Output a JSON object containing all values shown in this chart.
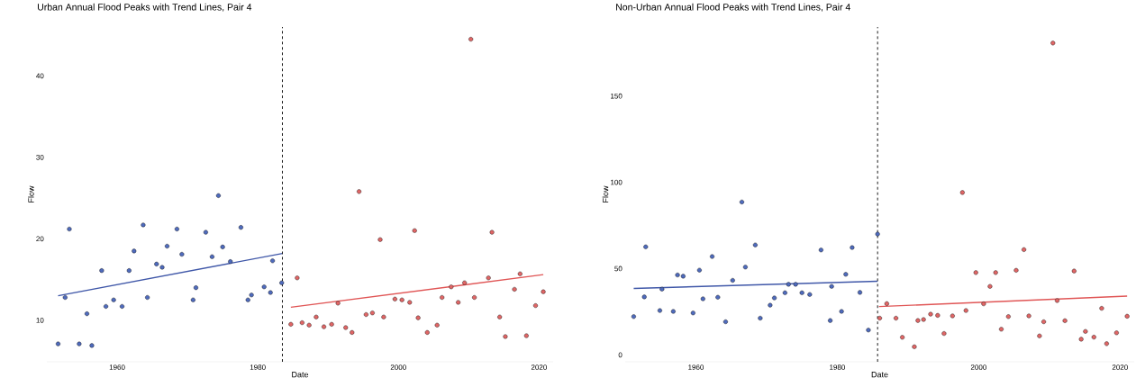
{
  "chart_data": [
    {
      "type": "scatter",
      "title": "Urban Annual Flood Peaks with Trend Lines, Pair 4",
      "xlabel": "Date",
      "ylabel": "Flow",
      "xlim": [
        1950,
        2022
      ],
      "ylim": [
        4.9,
        46
      ],
      "xticks": [
        1960,
        1980,
        2000,
        2020
      ],
      "yticks": [
        10,
        20,
        30,
        40
      ],
      "grid": false,
      "ref_lines": [
        {
          "axis": "x",
          "value": 1983.5,
          "color": "#000000",
          "line_style": "dashed"
        }
      ],
      "series": [
        {
          "type": "scatter",
          "marker": "circle",
          "color": "#4f6bbd",
          "x": [
            1951.6,
            1952.6,
            1953.2,
            1954.6,
            1955.7,
            1956.4,
            1957.8,
            1958.4,
            1959.5,
            1960.7,
            1961.7,
            1962.4,
            1963.7,
            1964.3,
            1965.6,
            1966.4,
            1967.1,
            1968.5,
            1969.2,
            1970.8,
            1971.2,
            1972.6,
            1973.5,
            1974.4,
            1975.0,
            1976.1,
            1977.6,
            1978.6,
            1979.1,
            1980.9,
            1981.8,
            1982.1,
            1983.4
          ],
          "values": [
            7.1,
            12.8,
            21.2,
            7.1,
            10.8,
            6.9,
            16.1,
            11.7,
            12.5,
            11.7,
            16.1,
            18.5,
            21.7,
            12.8,
            16.9,
            16.5,
            19.1,
            21.2,
            18.1,
            12.5,
            14.0,
            20.8,
            17.8,
            25.3,
            19.0,
            17.2,
            21.4,
            12.5,
            13.1,
            14.1,
            13.4,
            17.3,
            14.6
          ]
        },
        {
          "type": "scatter",
          "marker": "circle",
          "color": "#e06666",
          "x": [
            1984.7,
            1985.6,
            1986.3,
            1987.3,
            1988.3,
            1989.4,
            1990.5,
            1991.4,
            1992.5,
            1993.4,
            1994.4,
            1995.4,
            1996.3,
            1997.4,
            1997.9,
            1999.5,
            2000.5,
            2001.6,
            2002.3,
            2002.8,
            2004.1,
            2005.5,
            2006.2,
            2007.5,
            2008.5,
            2009.4,
            2010.3,
            2010.8,
            2012.8,
            2013.3,
            2014.4,
            2015.2,
            2016.5,
            2017.3,
            2018.2,
            2019.5,
            2020.6
          ],
          "values": [
            9.5,
            15.2,
            9.7,
            9.4,
            10.4,
            9.2,
            9.5,
            12.1,
            9.1,
            8.5,
            25.8,
            10.7,
            10.9,
            19.9,
            10.4,
            12.6,
            12.5,
            12.2,
            21.0,
            10.3,
            8.5,
            9.4,
            12.8,
            14.1,
            12.2,
            14.6,
            44.5,
            12.8,
            15.2,
            20.8,
            10.4,
            8.0,
            13.8,
            15.7,
            8.1,
            11.8,
            13.5
          ]
        },
        {
          "type": "line",
          "marker": "none",
          "color": "#3f57a8",
          "x": [
            1951.6,
            1983.5
          ],
          "values": [
            13.0,
            18.2
          ]
        },
        {
          "type": "line",
          "marker": "none",
          "color": "#e05555",
          "x": [
            1984.7,
            2020.6
          ],
          "values": [
            11.6,
            15.6
          ]
        }
      ]
    },
    {
      "type": "scatter",
      "title": "Non-Urban Annual Flood Peaks with Trend Lines, Pair 4",
      "xlabel": "Date",
      "ylabel": "Flow",
      "xlim": [
        1950,
        2022
      ],
      "ylim": [
        -4,
        190
      ],
      "xticks": [
        1960,
        1980,
        2000,
        2020
      ],
      "yticks": [
        0,
        50,
        100,
        150
      ],
      "grid": false,
      "ref_lines": [
        {
          "axis": "x",
          "value": 1985.7,
          "color": "#000000",
          "line_style": "dashed"
        }
      ],
      "series": [
        {
          "type": "scatter",
          "marker": "circle",
          "color": "#4f6bbd",
          "x": [
            1951.2,
            1952.7,
            1952.9,
            1954.9,
            1955.2,
            1956.8,
            1957.4,
            1958.2,
            1959.6,
            1960.5,
            1961.0,
            1962.3,
            1963.1,
            1964.2,
            1965.2,
            1966.5,
            1967.0,
            1968.4,
            1969.1,
            1970.5,
            1971.1,
            1972.6,
            1973.1,
            1974.1,
            1975.0,
            1976.1,
            1977.7,
            1979.0,
            1979.2,
            1980.6,
            1981.2,
            1982.1,
            1983.2,
            1984.4,
            1985.7
          ],
          "values": [
            22.2,
            33.6,
            62.6,
            25.7,
            38.1,
            25.2,
            46.3,
            45.6,
            24.3,
            49.1,
            32.5,
            57.0,
            33.4,
            19.2,
            43.2,
            88.6,
            50.9,
            63.7,
            21.3,
            28.8,
            33.0,
            36.0,
            40.9,
            40.9,
            36.0,
            35.0,
            60.8,
            19.9,
            39.7,
            25.2,
            46.7,
            62.2,
            36.2,
            14.4,
            70.0
          ]
        },
        {
          "type": "scatter",
          "marker": "circle",
          "color": "#e06666",
          "x": [
            1986.0,
            1987.0,
            1988.3,
            1989.2,
            1990.9,
            1991.4,
            1992.2,
            1993.2,
            1994.2,
            1995.1,
            1996.3,
            1997.7,
            1998.2,
            1999.6,
            2000.7,
            2001.6,
            2002.4,
            2003.2,
            2004.2,
            2005.3,
            2006.4,
            2007.1,
            2008.6,
            2009.2,
            2010.5,
            2011.1,
            2012.2,
            2013.5,
            2014.5,
            2015.1,
            2016.3,
            2017.4,
            2018.1,
            2019.5,
            2021.0
          ],
          "values": [
            21.3,
            29.7,
            21.3,
            10.2,
            4.7,
            19.9,
            20.5,
            23.6,
            22.9,
            12.4,
            22.6,
            94.1,
            25.7,
            47.7,
            29.6,
            39.7,
            47.7,
            14.9,
            22.2,
            49.0,
            61.0,
            22.6,
            11.0,
            19.2,
            180.7,
            31.5,
            19.8,
            48.6,
            9.1,
            13.6,
            10.3,
            27.0,
            6.5,
            12.8,
            22.4
          ]
        },
        {
          "type": "line",
          "marker": "none",
          "color": "#3f57a8",
          "x": [
            1951.2,
            1985.7
          ],
          "values": [
            38.5,
            42.7
          ]
        },
        {
          "type": "line",
          "marker": "none",
          "color": "#e05555",
          "x": [
            1985.9,
            2021.0
          ],
          "values": [
            28.0,
            34.1
          ]
        }
      ]
    }
  ]
}
